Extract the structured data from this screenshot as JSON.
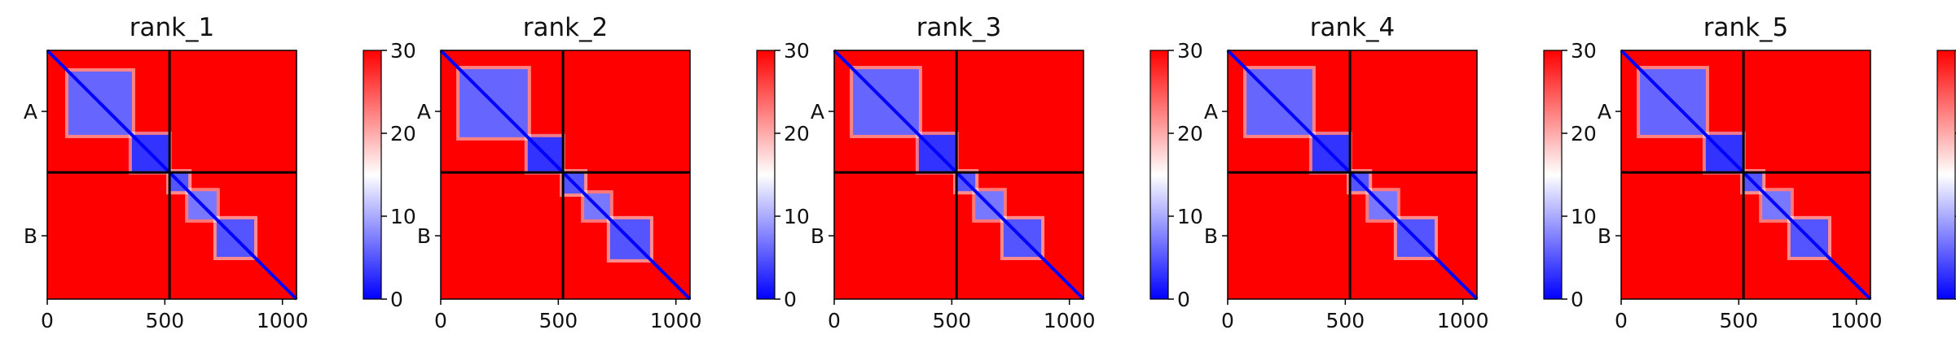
{
  "chart_data": {
    "type": "heatmap",
    "description_of_values": "Predicted aligned error per residue pair; colormap bwr from 0 to 30",
    "colormap": {
      "name": "bwr",
      "min": 0,
      "max": 30,
      "colors": [
        "#0000ff",
        "#ffffff",
        "#ff0000"
      ]
    },
    "x_ticks": [
      0,
      500,
      1000
    ],
    "x_tick_labels": [
      "0",
      "500",
      "1000"
    ],
    "x_range": [
      0,
      1060
    ],
    "y_range": [
      0,
      1060
    ],
    "chain_boundary": 520,
    "chain_labels": [
      "A",
      "B"
    ],
    "colorbar_ticks": [
      0,
      10,
      20,
      30
    ],
    "colorbar_tick_labels": [
      "0",
      "10",
      "20",
      "30"
    ],
    "panels": [
      {
        "title": "rank_1",
        "domains": [
          {
            "start": 90,
            "end": 360,
            "level": 6
          },
          {
            "start": 360,
            "end": 515,
            "level": 3
          },
          {
            "start": 520,
            "end": 600,
            "level": 5
          },
          {
            "start": 600,
            "end": 720,
            "level": 7
          },
          {
            "start": 720,
            "end": 880,
            "level": 5
          }
        ]
      },
      {
        "title": "rank_2",
        "domains": [
          {
            "start": 80,
            "end": 370,
            "level": 6
          },
          {
            "start": 370,
            "end": 515,
            "level": 3
          },
          {
            "start": 520,
            "end": 610,
            "level": 5
          },
          {
            "start": 610,
            "end": 720,
            "level": 7
          },
          {
            "start": 720,
            "end": 890,
            "level": 5
          }
        ]
      },
      {
        "title": "rank_3",
        "domains": [
          {
            "start": 80,
            "end": 360,
            "level": 6
          },
          {
            "start": 360,
            "end": 515,
            "level": 3
          },
          {
            "start": 520,
            "end": 600,
            "level": 5
          },
          {
            "start": 600,
            "end": 720,
            "level": 7
          },
          {
            "start": 720,
            "end": 880,
            "level": 5
          }
        ]
      },
      {
        "title": "rank_4",
        "domains": [
          {
            "start": 80,
            "end": 360,
            "level": 6
          },
          {
            "start": 360,
            "end": 515,
            "level": 3
          },
          {
            "start": 520,
            "end": 600,
            "level": 5
          },
          {
            "start": 600,
            "end": 720,
            "level": 7
          },
          {
            "start": 720,
            "end": 880,
            "level": 5
          }
        ]
      },
      {
        "title": "rank_5",
        "domains": [
          {
            "start": 80,
            "end": 360,
            "level": 6
          },
          {
            "start": 360,
            "end": 515,
            "level": 3
          },
          {
            "start": 520,
            "end": 600,
            "level": 5
          },
          {
            "start": 600,
            "end": 720,
            "level": 7
          },
          {
            "start": 720,
            "end": 880,
            "level": 5
          }
        ]
      }
    ]
  }
}
